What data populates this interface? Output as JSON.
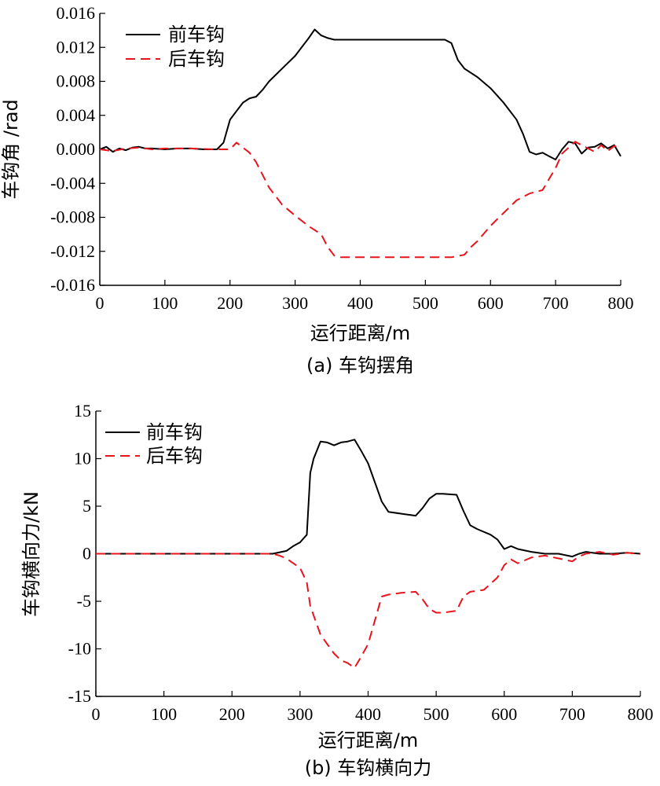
{
  "colors": {
    "front": "#000000",
    "rear": "#e8141c",
    "axis": "#000000"
  },
  "chart_data": [
    {
      "type": "line",
      "caption": "(a) 车钩摆角",
      "xlabel": "运行距离/m",
      "ylabel": "车钩角 /rad",
      "xlim": [
        0,
        800
      ],
      "ylim": [
        -0.016,
        0.016
      ],
      "xticks": [
        0,
        100,
        200,
        300,
        400,
        500,
        600,
        700,
        800
      ],
      "yticks": [
        -0.016,
        -0.012,
        -0.008,
        -0.004,
        0.0,
        0.004,
        0.008,
        0.012,
        0.016
      ],
      "ytick_labels": [
        "-0.016",
        "-0.012",
        "-0.008",
        "-0.004",
        "0.000",
        "0.004",
        "0.008",
        "0.012",
        "0.016"
      ],
      "xtick_labels": [
        "0",
        "100",
        "200",
        "300",
        "400",
        "500",
        "600",
        "700",
        "800"
      ],
      "legend_position": "top-left",
      "series": [
        {
          "name": "前车钩",
          "style": "solid",
          "color": "#000000",
          "x": [
            0,
            10,
            20,
            30,
            40,
            50,
            60,
            70,
            80,
            100,
            120,
            140,
            160,
            180,
            190,
            200,
            210,
            220,
            230,
            240,
            250,
            260,
            280,
            300,
            320,
            330,
            340,
            350,
            360,
            380,
            400,
            450,
            500,
            530,
            540,
            550,
            560,
            580,
            600,
            620,
            640,
            650,
            660,
            670,
            680,
            690,
            700,
            710,
            720,
            730,
            740,
            750,
            760,
            770,
            780,
            790,
            800
          ],
          "y": [
            0.0,
            0.0003,
            -0.0003,
            0.0001,
            -0.0001,
            0.0002,
            0.0003,
            0.0001,
            0.0001,
            0.0,
            0.0001,
            0.0001,
            0.0,
            0.0,
            0.0008,
            0.0035,
            0.0045,
            0.0055,
            0.006,
            0.0062,
            0.007,
            0.008,
            0.0095,
            0.011,
            0.013,
            0.0141,
            0.0134,
            0.0131,
            0.0129,
            0.0129,
            0.0129,
            0.0129,
            0.0129,
            0.0129,
            0.0125,
            0.0105,
            0.0095,
            0.0085,
            0.0072,
            0.0055,
            0.0035,
            0.0018,
            -0.0003,
            -0.0006,
            -0.0004,
            -0.0008,
            -0.0012,
            0.0,
            0.0009,
            0.0007,
            -0.0005,
            0.0002,
            0.0003,
            0.0007,
            0.0001,
            0.0005,
            -0.0008
          ]
        },
        {
          "name": "后车钩",
          "style": "dashed",
          "color": "#e8141c",
          "x": [
            0,
            20,
            40,
            60,
            80,
            100,
            140,
            180,
            200,
            210,
            220,
            230,
            240,
            250,
            260,
            270,
            280,
            300,
            320,
            340,
            350,
            360,
            370,
            380,
            400,
            450,
            500,
            540,
            560,
            570,
            580,
            600,
            620,
            640,
            660,
            680,
            690,
            700,
            710,
            720,
            730,
            740,
            750,
            760,
            770,
            780,
            790,
            800
          ],
          "y": [
            0.0,
            -0.0002,
            0.0001,
            0.0002,
            0.0,
            0.0001,
            0.0001,
            0.0,
            0.0,
            0.0008,
            0.0002,
            -0.0004,
            -0.0015,
            -0.003,
            -0.0045,
            -0.0055,
            -0.0065,
            -0.0078,
            -0.009,
            -0.01,
            -0.0115,
            -0.0125,
            -0.0127,
            -0.0127,
            -0.0127,
            -0.0127,
            -0.0127,
            -0.0127,
            -0.0124,
            -0.0115,
            -0.0108,
            -0.009,
            -0.0075,
            -0.006,
            -0.0052,
            -0.0048,
            -0.0035,
            -0.0022,
            -0.0005,
            0.0002,
            0.0009,
            0.0005,
            0.0001,
            -0.0003,
            0.0005,
            -0.0002,
            0.0004,
            0.0001
          ]
        }
      ]
    },
    {
      "type": "line",
      "caption": "(b) 车钩横向力",
      "xlabel": "运行距离/m",
      "ylabel": "车钩横向力/kN",
      "xlim": [
        0,
        800
      ],
      "ylim": [
        -15,
        15
      ],
      "xticks": [
        0,
        100,
        200,
        300,
        400,
        500,
        600,
        700,
        800
      ],
      "yticks": [
        -15,
        -10,
        -5,
        0,
        5,
        10,
        15
      ],
      "ytick_labels": [
        "-15",
        "-10",
        "-5",
        "0",
        "5",
        "10",
        "15"
      ],
      "xtick_labels": [
        "0",
        "100",
        "200",
        "300",
        "400",
        "500",
        "600",
        "700",
        "800"
      ],
      "legend_position": "top-left",
      "series": [
        {
          "name": "前车钩",
          "style": "solid",
          "color": "#000000",
          "x": [
            0,
            100,
            200,
            260,
            280,
            290,
            300,
            310,
            315,
            320,
            330,
            340,
            350,
            360,
            370,
            380,
            390,
            400,
            410,
            420,
            430,
            450,
            470,
            480,
            490,
            500,
            510,
            530,
            540,
            550,
            560,
            580,
            590,
            600,
            610,
            620,
            640,
            660,
            680,
            700,
            710,
            720,
            740,
            760,
            780,
            800
          ],
          "y": [
            0,
            0,
            0,
            0,
            0.3,
            0.8,
            1.2,
            2.0,
            8.5,
            10.0,
            11.8,
            11.7,
            11.4,
            11.7,
            11.8,
            12.0,
            10.8,
            9.5,
            7.5,
            5.5,
            4.4,
            4.2,
            4.0,
            4.8,
            5.8,
            6.3,
            6.3,
            6.2,
            4.5,
            3.0,
            2.6,
            2.0,
            1.5,
            0.5,
            0.8,
            0.5,
            0.2,
            0.0,
            0.0,
            -0.3,
            0.0,
            0.2,
            0.0,
            0.0,
            0.1,
            0.0
          ]
        },
        {
          "name": "后车钩",
          "style": "dashed",
          "color": "#e8141c",
          "x": [
            0,
            100,
            200,
            260,
            270,
            280,
            290,
            300,
            310,
            315,
            320,
            330,
            340,
            350,
            360,
            370,
            380,
            390,
            400,
            410,
            420,
            430,
            450,
            470,
            480,
            490,
            500,
            510,
            530,
            540,
            550,
            570,
            590,
            600,
            610,
            620,
            640,
            660,
            680,
            700,
            710,
            720,
            740,
            760,
            780,
            800
          ],
          "y": [
            0,
            0,
            0,
            0,
            -0.2,
            -0.5,
            -1.0,
            -1.5,
            -3.0,
            -5.5,
            -6.5,
            -8.5,
            -9.5,
            -10.5,
            -11.2,
            -11.5,
            -12.0,
            -10.8,
            -9.5,
            -7.0,
            -4.5,
            -4.3,
            -4.1,
            -4.0,
            -4.8,
            -5.8,
            -6.2,
            -6.2,
            -6.0,
            -4.5,
            -4.0,
            -3.8,
            -2.5,
            -1.2,
            -0.6,
            -1.0,
            -0.4,
            -0.2,
            -0.5,
            -0.8,
            -0.3,
            0.0,
            0.2,
            -0.1,
            0.1,
            0.0
          ]
        }
      ]
    }
  ]
}
